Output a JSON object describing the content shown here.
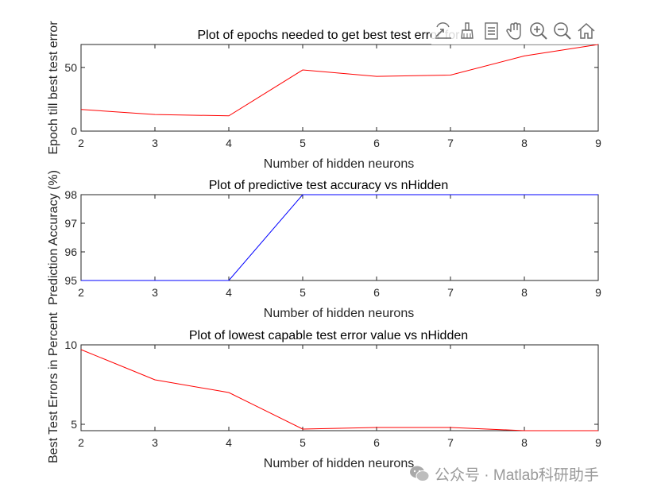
{
  "toolbar": {
    "icons": [
      "export-icon",
      "brush-icon",
      "data-tips-icon",
      "pan-icon",
      "zoom-in-icon",
      "zoom-out-icon",
      "home-icon"
    ]
  },
  "watermark": {
    "text": "公众号 · Matlab科研助手"
  },
  "chart_data": [
    {
      "type": "line",
      "title": "Plot of epochs needed to get best test error for",
      "xlabel": "Number of hidden neurons",
      "ylabel": "Epoch till best test error",
      "x": [
        2,
        3,
        4,
        5,
        6,
        7,
        8,
        9
      ],
      "series": [
        {
          "values": [
            17,
            13,
            12,
            48,
            43,
            44,
            59,
            68
          ],
          "color": "#ff0000"
        }
      ],
      "xlim": [
        2,
        9
      ],
      "ylim": [
        0,
        68
      ],
      "xticks": [
        "2",
        "3",
        "4",
        "5",
        "6",
        "7",
        "8",
        "9"
      ],
      "yticks": [
        "0",
        "50"
      ],
      "grid": false
    },
    {
      "type": "line",
      "title": "Plot of predictive test accuracy vs nHidden",
      "xlabel": "Number of hidden neurons",
      "ylabel": "Prediction Accuracy (%)",
      "x": [
        2,
        3,
        4,
        5,
        6,
        7,
        8,
        9
      ],
      "series": [
        {
          "values": [
            95,
            95,
            95,
            98,
            98,
            98,
            98,
            98
          ],
          "color": "#0000ff"
        }
      ],
      "xlim": [
        2,
        9
      ],
      "ylim": [
        95,
        98
      ],
      "xticks": [
        "2",
        "3",
        "4",
        "5",
        "6",
        "7",
        "8",
        "9"
      ],
      "yticks": [
        "95",
        "96",
        "97",
        "98"
      ],
      "grid": false
    },
    {
      "type": "line",
      "title": "Plot of lowest capable test error value vs nHidden",
      "xlabel": "Number of hidden neurons",
      "ylabel": "Best Test Errors in Percent",
      "x": [
        2,
        3,
        4,
        5,
        6,
        7,
        8,
        9
      ],
      "series": [
        {
          "values": [
            9.7,
            7.8,
            7.0,
            4.7,
            4.8,
            4.8,
            4.6,
            4.6
          ],
          "color": "#ff0000"
        }
      ],
      "xlim": [
        2,
        9
      ],
      "ylim": [
        4.6,
        10
      ],
      "xticks": [
        "2",
        "3",
        "4",
        "5",
        "6",
        "7",
        "8",
        "9"
      ],
      "yticks": [
        "5",
        "10"
      ],
      "grid": false
    }
  ]
}
